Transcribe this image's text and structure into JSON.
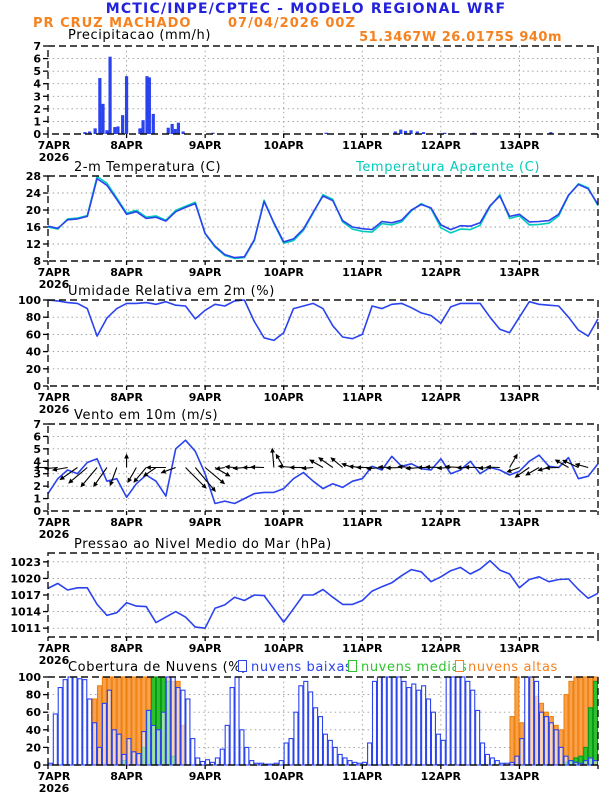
{
  "header": {
    "model_title": "MCTIC/INPE/CPTEC - MODELO REGIONAL WRF",
    "station": "PR CRUZ MACHADO",
    "run": "07/04/2026 00Z",
    "coords": "51.3467W 26.0175S 940m"
  },
  "colors": {
    "header_blue": "#2222dd",
    "orange": "#f5821f",
    "line_blue": "#2a43ee",
    "cyan": "#00ccbb",
    "green": "#17b42a",
    "cloud_orange_fill": "#f9a14d",
    "cloud_orange_stroke": "#ef820e",
    "cloud_green_fill": "#2ec22e",
    "cloud_green_stroke": "#0a9a1a",
    "grid": "#999999",
    "frame": "#111111"
  },
  "x_axis": {
    "day_labels": [
      "7APR",
      "8APR",
      "9APR",
      "10APR",
      "11APR",
      "12APR",
      "13APR"
    ],
    "year_label": "2026",
    "span_days": 7
  },
  "chart_data": [
    {
      "id": "precip",
      "type": "bar",
      "title": "Precipitacao (mm/h)",
      "ylim": [
        0,
        7
      ],
      "yticks": [
        0,
        1,
        2,
        3,
        4,
        5,
        6,
        7
      ],
      "bars": [
        [
          0.47,
          0.15
        ],
        [
          0.53,
          0.2
        ],
        [
          0.6,
          0.45
        ],
        [
          0.66,
          4.45
        ],
        [
          0.7,
          2.4
        ],
        [
          0.75,
          0.3
        ],
        [
          0.79,
          6.15
        ],
        [
          0.85,
          0.55
        ],
        [
          0.89,
          0.6
        ],
        [
          0.95,
          1.5
        ],
        [
          1.0,
          4.6
        ],
        [
          1.17,
          0.45
        ],
        [
          1.21,
          1.1
        ],
        [
          1.26,
          4.6
        ],
        [
          1.29,
          4.5
        ],
        [
          1.34,
          1.6
        ],
        [
          1.53,
          0.5
        ],
        [
          1.58,
          0.8
        ],
        [
          1.62,
          0.4
        ],
        [
          1.66,
          0.9
        ],
        [
          1.72,
          0.2
        ],
        [
          2.1,
          0.1
        ],
        [
          3.54,
          0.1
        ],
        [
          4.42,
          0.2
        ],
        [
          4.49,
          0.35
        ],
        [
          4.55,
          0.25
        ],
        [
          4.62,
          0.3
        ],
        [
          4.7,
          0.2
        ],
        [
          4.78,
          0.15
        ],
        [
          5.05,
          0.1
        ],
        [
          5.42,
          0.1
        ],
        [
          6.4,
          0.15
        ]
      ]
    },
    {
      "id": "temp",
      "type": "line",
      "title": "2-m Temperatura (C)",
      "ylim": [
        8,
        28
      ],
      "yticks": [
        8,
        12,
        16,
        20,
        24,
        28
      ],
      "t_step": 0.125,
      "series": [
        {
          "name": "2-m Temperatura (C)",
          "color": "line_blue",
          "values": [
            16.2,
            15.7,
            17.7,
            17.9,
            18.5,
            27.4,
            25.8,
            22.5,
            19.0,
            19.6,
            18.0,
            18.3,
            17.4,
            19.6,
            20.6,
            21.5,
            14.5,
            11.5,
            9.5,
            8.8,
            9.0,
            13.0,
            22.0,
            17.0,
            12.5,
            13.2,
            15.5,
            19.5,
            23.3,
            22.2,
            17.5,
            16.0,
            15.6,
            15.4,
            17.3,
            17.0,
            17.6,
            20.0,
            21.3,
            20.5,
            16.5,
            15.4,
            16.3,
            16.2,
            17.0,
            21.0,
            23.3,
            18.5,
            19.0,
            17.2,
            17.3,
            17.5,
            19.0,
            23.5,
            26.0,
            25.0,
            21.3
          ]
        },
        {
          "name": "Temperatura Aparente (C)",
          "color": "cyan",
          "values": [
            16.0,
            15.5,
            17.9,
            18.1,
            18.7,
            27.9,
            26.3,
            22.8,
            19.3,
            19.9,
            18.3,
            18.6,
            17.6,
            19.9,
            20.9,
            21.8,
            14.4,
            11.3,
            9.3,
            8.6,
            8.8,
            12.8,
            22.3,
            16.8,
            12.2,
            12.8,
            15.2,
            19.3,
            23.6,
            22.5,
            17.2,
            15.5,
            15.0,
            14.8,
            16.8,
            16.5,
            17.2,
            19.8,
            21.5,
            20.3,
            15.8,
            14.6,
            15.5,
            15.4,
            16.4,
            20.8,
            23.6,
            18.0,
            18.6,
            16.5,
            16.6,
            16.9,
            18.6,
            23.4,
            26.2,
            25.2,
            21.0
          ]
        }
      ]
    },
    {
      "id": "rh",
      "type": "line",
      "title": "Umidade Relativa em 2m (%)",
      "ylim": [
        0,
        100
      ],
      "yticks": [
        0,
        20,
        40,
        60,
        80,
        100
      ],
      "t_step": 0.125,
      "series": [
        {
          "name": "Umidade Relativa em 2m (%)",
          "color": "line_blue",
          "values": [
            100,
            99,
            97,
            96,
            90,
            58,
            79,
            90,
            96,
            96,
            97,
            95,
            98,
            94,
            93,
            78,
            88,
            95,
            93,
            99,
            100,
            75,
            56,
            53,
            62,
            90,
            93,
            96,
            90,
            70,
            57,
            55,
            60,
            93,
            90,
            95,
            96,
            91,
            85,
            82,
            73,
            92,
            96,
            96,
            96,
            80,
            66,
            62,
            80,
            98,
            95,
            94,
            93,
            80,
            65,
            58,
            78
          ]
        }
      ]
    },
    {
      "id": "wind",
      "type": "line",
      "title": "Vento em 10m (m/s)",
      "ylim": [
        0,
        7
      ],
      "yticks": [
        0,
        1,
        2,
        3,
        4,
        5,
        6,
        7
      ],
      "t_step": 0.125,
      "series": [
        {
          "name": "Vento em 10m (m/s)",
          "color": "line_blue",
          "values": [
            1.4,
            2.6,
            3.3,
            3.0,
            3.9,
            4.2,
            2.4,
            2.6,
            1.1,
            2.2,
            2.9,
            2.4,
            1.2,
            5.0,
            5.7,
            4.8,
            3.0,
            0.6,
            0.8,
            0.6,
            1.0,
            1.4,
            1.5,
            1.5,
            1.8,
            2.6,
            3.1,
            2.4,
            1.8,
            2.2,
            1.9,
            2.4,
            2.6,
            3.6,
            3.3,
            4.4,
            3.6,
            3.8,
            3.4,
            3.3,
            4.2,
            3.0,
            3.3,
            4.0,
            3.0,
            3.5,
            3.3,
            2.9,
            3.2,
            4.0,
            4.5,
            3.6,
            3.5,
            4.3,
            2.6,
            2.8,
            3.8
          ]
        }
      ],
      "arrows": {
        "baseline_value": 3.5,
        "t_step": 0.125,
        "ang": [
          180,
          185,
          190,
          215,
          220,
          230,
          235,
          250,
          90,
          240,
          230,
          215,
          180,
          200,
          315,
          310,
          320,
          330,
          190,
          175,
          185,
          180,
          178,
          95,
          120,
          175,
          180,
          185,
          150,
          145,
          140,
          160,
          175,
          180,
          185,
          178,
          182,
          176,
          184,
          180,
          178,
          183,
          177,
          181,
          179,
          184,
          178,
          60,
          200,
          215,
          210,
          195,
          182,
          150,
          155,
          165
        ],
        "len": [
          14,
          14,
          16,
          22,
          25,
          26,
          24,
          20,
          14,
          18,
          20,
          16,
          20,
          16,
          30,
          32,
          26,
          18,
          10,
          10,
          12,
          12,
          14,
          20,
          16,
          16,
          14,
          12,
          16,
          18,
          16,
          12,
          14,
          16,
          16,
          14,
          16,
          14,
          16,
          14,
          16,
          14,
          16,
          14,
          16,
          12,
          14,
          16,
          14,
          18,
          16,
          12,
          14,
          16,
          18,
          14
        ]
      }
    },
    {
      "id": "pres",
      "type": "line",
      "title": "Pressao ao Nivel Medio do Mar (hPa)",
      "ylim": [
        1009.4,
        1024.6
      ],
      "yticks": [
        1011,
        1014,
        1017,
        1020,
        1023
      ],
      "t_step": 0.125,
      "series": [
        {
          "name": "Pressao ao Nivel Medio do Mar (hPa)",
          "color": "line_blue",
          "values": [
            1018.2,
            1019.1,
            1017.9,
            1018.3,
            1018.3,
            1015.3,
            1013.3,
            1013.8,
            1015.6,
            1015.0,
            1014.9,
            1012.0,
            1013.0,
            1014.0,
            1013.0,
            1011.2,
            1011.0,
            1014.6,
            1015.2,
            1016.6,
            1016.0,
            1017.0,
            1016.9,
            1014.5,
            1012.1,
            1014.5,
            1017.0,
            1017.0,
            1018.0,
            1016.6,
            1015.3,
            1015.3,
            1016.0,
            1017.7,
            1018.5,
            1019.2,
            1020.5,
            1021.6,
            1021.2,
            1019.4,
            1020.3,
            1021.4,
            1022.0,
            1020.8,
            1021.7,
            1023.2,
            1021.5,
            1020.8,
            1018.3,
            1019.8,
            1020.3,
            1019.4,
            1019.8,
            1019.9,
            1018.0,
            1016.4,
            1017.3
          ]
        }
      ]
    },
    {
      "id": "clouds",
      "type": "bar",
      "title": "Cobertura de Nuvens (%)",
      "ylim": [
        0,
        100
      ],
      "yticks": [
        0,
        20,
        40,
        60,
        80,
        100
      ],
      "t_step": 0.0625,
      "series": [
        {
          "name": "nuvens baixas",
          "key": "low",
          "values": [
            2,
            58,
            88,
            97,
            100,
            100,
            98,
            97,
            75,
            48,
            20,
            70,
            85,
            40,
            35,
            12,
            30,
            15,
            13,
            38,
            62,
            45,
            40,
            60,
            100,
            100,
            88,
            85,
            75,
            30,
            8,
            4,
            6,
            3,
            8,
            18,
            45,
            88,
            100,
            40,
            20,
            5,
            2,
            2,
            1,
            1,
            2,
            5,
            25,
            30,
            60,
            90,
            95,
            83,
            65,
            55,
            35,
            28,
            20,
            12,
            8,
            5,
            3,
            2,
            3,
            25,
            95,
            100,
            100,
            100,
            100,
            100,
            95,
            88,
            92,
            85,
            90,
            75,
            60,
            35,
            28,
            100,
            100,
            100,
            100,
            95,
            85,
            62,
            25,
            12,
            8,
            5,
            2,
            2,
            3,
            10,
            30,
            100,
            100,
            95,
            60,
            55,
            48,
            40,
            20,
            10,
            5,
            3,
            2,
            5,
            8,
            5
          ]
        },
        {
          "name": "nuvens medias",
          "key": "mid",
          "values": [
            0,
            0,
            0,
            0,
            0,
            0,
            0,
            0,
            0,
            0,
            0,
            0,
            0,
            0,
            0,
            5,
            0,
            0,
            0,
            20,
            62,
            100,
            100,
            100,
            95,
            10,
            0,
            0,
            0,
            0,
            0,
            0,
            0,
            0,
            0,
            0,
            0,
            0,
            0,
            0,
            0,
            0,
            0,
            0,
            0,
            0,
            0,
            0,
            0,
            0,
            0,
            0,
            0,
            0,
            0,
            0,
            0,
            0,
            0,
            0,
            0,
            0,
            0,
            0,
            0,
            0,
            0,
            0,
            0,
            0,
            0,
            0,
            0,
            0,
            0,
            0,
            0,
            0,
            0,
            0,
            0,
            0,
            0,
            0,
            0,
            0,
            0,
            0,
            0,
            0,
            0,
            0,
            0,
            0,
            0,
            0,
            0,
            0,
            0,
            0,
            0,
            0,
            0,
            0,
            0,
            3,
            5,
            8,
            10,
            20,
            65,
            95
          ]
        },
        {
          "name": "nuvens altas",
          "key": "high",
          "values": [
            0,
            0,
            0,
            0,
            0,
            0,
            0,
            0,
            0,
            75,
            90,
            100,
            100,
            100,
            100,
            100,
            100,
            100,
            100,
            100,
            100,
            100,
            100,
            100,
            100,
            95,
            95,
            45,
            0,
            0,
            0,
            0,
            0,
            0,
            0,
            0,
            0,
            0,
            0,
            0,
            0,
            0,
            0,
            0,
            0,
            0,
            0,
            0,
            0,
            0,
            0,
            0,
            0,
            0,
            0,
            0,
            0,
            0,
            0,
            0,
            0,
            0,
            0,
            0,
            0,
            0,
            0,
            0,
            0,
            0,
            0,
            0,
            0,
            0,
            0,
            0,
            0,
            0,
            0,
            0,
            0,
            0,
            0,
            0,
            0,
            0,
            0,
            0,
            0,
            0,
            0,
            0,
            0,
            0,
            55,
            100,
            48,
            0,
            100,
            78,
            70,
            60,
            55,
            45,
            40,
            80,
            95,
            100,
            100,
            100,
            100,
            100
          ]
        }
      ]
    }
  ]
}
